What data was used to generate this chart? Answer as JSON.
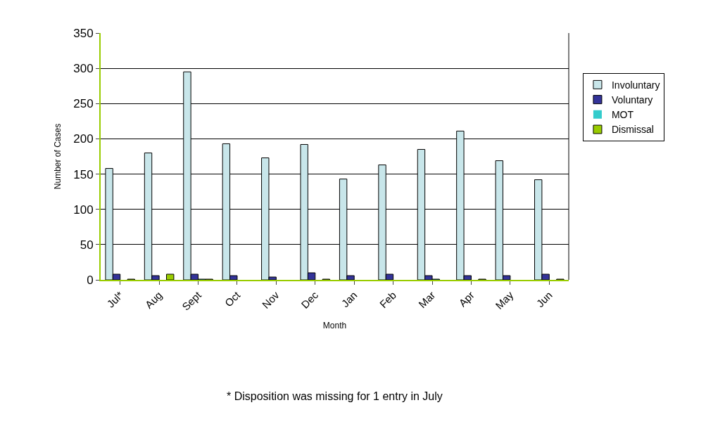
{
  "chart_data": {
    "type": "bar",
    "xlabel": "Month",
    "ylabel": "Number of Cases",
    "categories": [
      "Jul*",
      "Aug",
      "Sept",
      "Oct",
      "Nov",
      "Dec",
      "Jan",
      "Feb",
      "Mar",
      "Apr",
      "May",
      "Jun"
    ],
    "series": [
      {
        "name": "Involuntary",
        "color": "#c8e6ea",
        "values": [
          158,
          180,
          295,
          193,
          173,
          192,
          143,
          163,
          185,
          211,
          169,
          142
        ]
      },
      {
        "name": "Voluntary",
        "color": "#333399",
        "values": [
          8,
          6,
          8,
          6,
          4,
          10,
          6,
          8,
          6,
          6,
          6,
          8
        ]
      },
      {
        "name": "MOT",
        "color": "#33cccc",
        "values": [
          0,
          0,
          1,
          0,
          0,
          0,
          0,
          0,
          1,
          0,
          0,
          0
        ]
      },
      {
        "name": "Dismissal",
        "color": "#99cc00",
        "values": [
          1,
          8,
          1,
          0,
          0,
          1,
          0,
          0,
          0,
          1,
          0,
          1
        ]
      }
    ],
    "ylim": [
      0,
      350
    ],
    "yticks": [
      0,
      50,
      100,
      150,
      200,
      250,
      300,
      350
    ],
    "grid": "y",
    "legend": "right",
    "annotations": [
      "* Disposition was missing for 1 entry in July"
    ]
  }
}
